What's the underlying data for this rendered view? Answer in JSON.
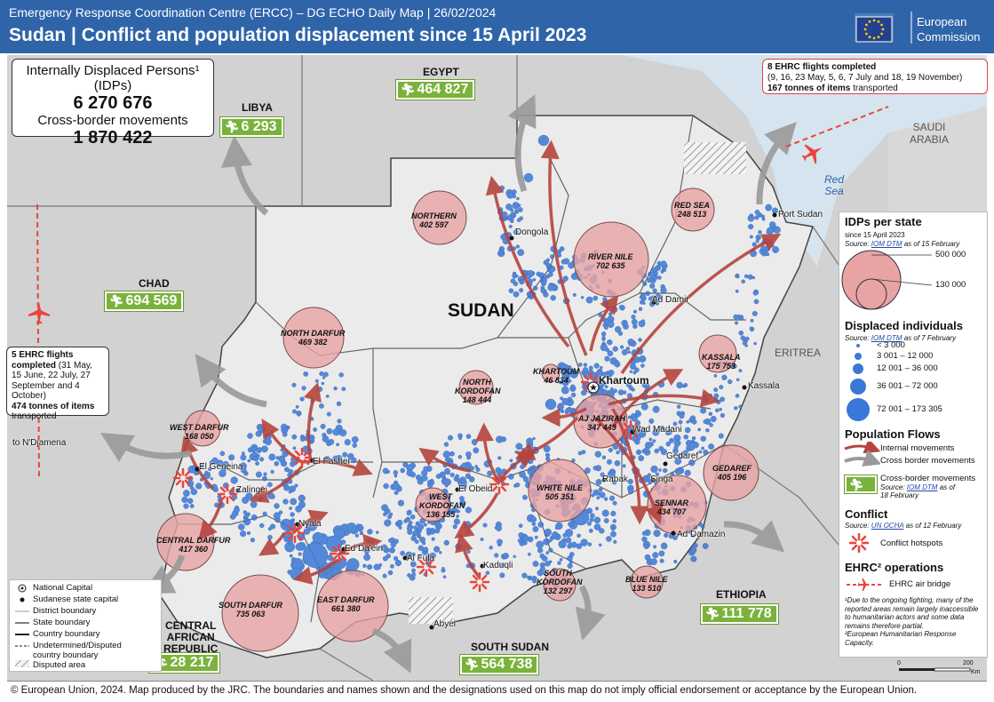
{
  "header": {
    "subtitle": "Emergency Response Coordination Centre (ERCC) – DG ECHO Daily Map | 26/02/2024",
    "title": "Sudan | Conflict and population displacement since 15 April 2023",
    "logo_line1": "European",
    "logo_line2": "Commission"
  },
  "summary": {
    "idp_label": "Internally Displaced Persons¹",
    "idp_label2": "(IDPs)",
    "idp_value": "6 270 676",
    "cross_label": "Cross-border movements",
    "cross_value": "1 870 422"
  },
  "country_figures": [
    {
      "country": "EGYPT",
      "value": "464 827"
    },
    {
      "country": "LIBYA",
      "value": "6 293"
    },
    {
      "country": "CHAD",
      "value": "694 569"
    },
    {
      "country": "CENTRAL AFRICAN REPUBLIC",
      "value": "28 217"
    },
    {
      "country": "SOUTH SUDAN",
      "value": "564 738"
    },
    {
      "country": "ETHIOPIA",
      "value": "111 778"
    }
  ],
  "country_labels": {
    "sudan": "SUDAN",
    "eritrea": "ERITREA",
    "saudi1": "SAUDI",
    "saudi2": "ARABIA",
    "red_sea1": "Red",
    "red_sea2": "Sea",
    "car1": "CENTRAL",
    "car2": "AFRICAN",
    "car3": "REPUBLIC"
  },
  "states": [
    {
      "name": "NORTHERN",
      "value": "402 597"
    },
    {
      "name": "RIVER NILE",
      "value": "702 635"
    },
    {
      "name": "RED SEA",
      "value": "248 513"
    },
    {
      "name": "KASSALA",
      "value": "175 753"
    },
    {
      "name": "NORTH DARFUR",
      "value": "469 382"
    },
    {
      "name": "NORTH KORDOFAN",
      "value": "148 444"
    },
    {
      "name": "KHARTOUM",
      "value": "46 834"
    },
    {
      "name": "AJ JAZIRAH",
      "value": "347 449"
    },
    {
      "name": "GEDAREF",
      "value": "405 196"
    },
    {
      "name": "WEST DARFUR",
      "value": "168 050"
    },
    {
      "name": "WHITE NILE",
      "value": "505 351"
    },
    {
      "name": "SENNAR",
      "value": "434 707"
    },
    {
      "name": "WEST KORDOFAN",
      "value": "136 155"
    },
    {
      "name": "CENTRAL DARFUR",
      "value": "417 360"
    },
    {
      "name": "SOUTH KORDOFAN",
      "value": "132 297"
    },
    {
      "name": "BLUE NILE",
      "value": "133 510"
    },
    {
      "name": "SOUTH DARFUR",
      "value": "735 063"
    },
    {
      "name": "EAST DARFUR",
      "value": "661 380"
    }
  ],
  "towns": {
    "dongola": "Dongola",
    "port_sudan": "Port Sudan",
    "ad_damir": "Ad Damir",
    "khartoum": "Khartoum",
    "kassala": "Kassala",
    "wad_madani": "Wad Madani",
    "gedaref": "Gedaref",
    "el_fasher": "El Fasher",
    "el_geneina": "El Geneina",
    "zalingei": "Zalingei",
    "el_obeid": "El Obeid",
    "rabak": "Rabak",
    "singa": "Singa",
    "nyala": "Nyala",
    "ed_daein": "Ed Da'ein",
    "al_fula": "Al Fula",
    "kaduqli": "Kaduqli",
    "ad_damazin": "Ad Damazin",
    "abyei": "Abyei",
    "ndjamena": "to N'Djamena"
  },
  "flights_ne": {
    "line1": "8 EHRC flights completed",
    "line2": "(9, 16, 23 May, 5, 6, 7 July and 18, 19 November)",
    "line3_bold": "167 tonnes of items",
    "line3_rest": " transported"
  },
  "flights_w": {
    "l1": "5 EHRC flights",
    "l2": "completed",
    "l2b": " (31 May,",
    "l3": "15 June, 22 July, 27",
    "l4": "September and 4",
    "l5": "October)",
    "l6": "474 tonnes of items",
    "l7": "transported"
  },
  "legend": {
    "idp_title": "IDPs per state",
    "idp_since": "since 15 April 2023",
    "idp_source": "Source: ",
    "idp_source_link": "IOM DTM",
    "idp_source_date": " as of 15 February",
    "circle_large": "500 000",
    "circle_small": "130 000",
    "disp_title": "Displaced individuals",
    "disp_source": "Source: ",
    "disp_source_link": "IOM DTM",
    "disp_source_date": " as of 7 February",
    "classes": [
      "< 3 000",
      "3 001 – 12 000",
      "12 001 – 36 000",
      "36 001 – 72 000",
      "72 001 – 173 305"
    ],
    "flows_title": "Population Flows",
    "flow_internal": "Internal movements",
    "flow_cross": "Cross border movements",
    "cross_mov": "Cross-border movements",
    "cross_src": "Source: ",
    "cross_src_link": "IOM DTM",
    "cross_src_date": " as of",
    "cross_src_date2": "18 February",
    "conflict_title": "Conflict",
    "conflict_src": "Source: ",
    "conflict_src_link": "UN OCHA",
    "conflict_src_date": " as of 12 February",
    "hotspots": "Conflict hotspots",
    "ehrc_title": "EHRC² operations",
    "ehrc_bridge": "EHRC air bridge",
    "note1": "¹Due to the ongoing fighting, many of the reported areas remain largely inaccessible to humanitarian actors and some data remains therefore partial.",
    "note2": "²European Humanitarian Response Capacity.",
    "scale0": "0",
    "scale200": "200",
    "scale_unit": "Km"
  },
  "base_legend": [
    "National Capital",
    "Sudanese state capital",
    "District boundary",
    "State boundary",
    "Country boundary",
    "Undetermined/Disputed",
    "country boundary",
    "Disputed area"
  ],
  "footer": "© European Union, 2024. Map produced by the JRC. The boundaries and names shown and the designations used on this map do not imply official endorsement or acceptance by the European Union.",
  "colors": {
    "header": "#2f64a8",
    "badge": "#7ab23b",
    "state_circle": "#e8a4a4",
    "dot": "#3a78d8",
    "arrow_internal": "#b5443e",
    "arrow_cross": "#8d8d8d",
    "conflict": "#e8463c",
    "land": "#dcdcdc",
    "sea": "#d6e4ef"
  }
}
